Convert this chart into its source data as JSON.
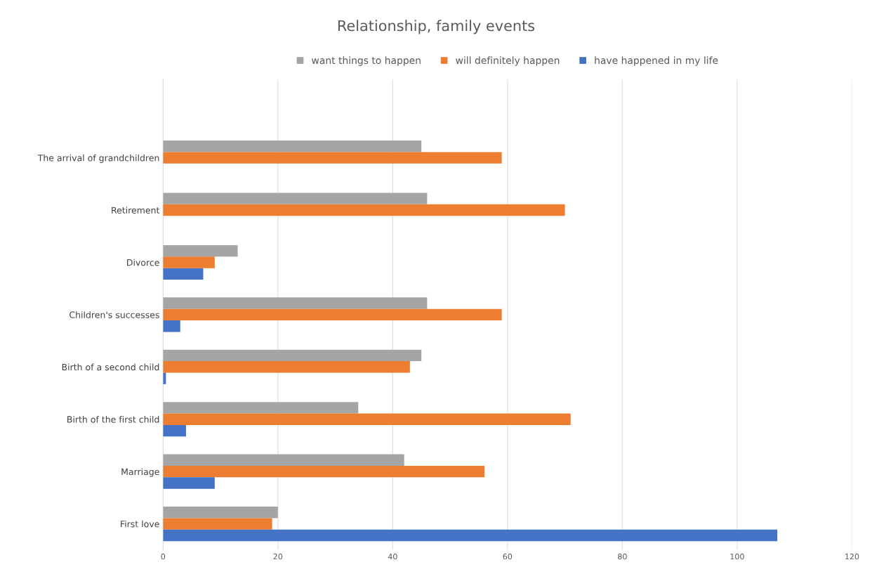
{
  "chart_data": {
    "type": "bar",
    "orientation": "horizontal",
    "title": "Relationship, family events",
    "categories": [
      null,
      "The arrival of grandchildren",
      "Retirement",
      "Divorce",
      "Children's successes",
      "Birth of a second child",
      "Birth of the first child",
      "Marriage",
      "First love"
    ],
    "series": [
      {
        "name": "want things to happen",
        "color": "#a5a5a5",
        "values": [
          null,
          45,
          46,
          13,
          46,
          45,
          34,
          42,
          20
        ]
      },
      {
        "name": "will definitely happen",
        "color": "#ed7d31",
        "values": [
          null,
          59,
          70,
          9,
          59,
          43,
          71,
          56,
          19
        ]
      },
      {
        "name": "have happened in my life",
        "color": "#4472c4",
        "values": [
          null,
          null,
          null,
          7,
          3,
          0.5,
          4,
          9,
          107
        ]
      }
    ],
    "xlim": [
      0,
      120
    ],
    "xticks": [
      0,
      20,
      40,
      60,
      80,
      100,
      120
    ],
    "grid": "x",
    "legend": "top"
  }
}
